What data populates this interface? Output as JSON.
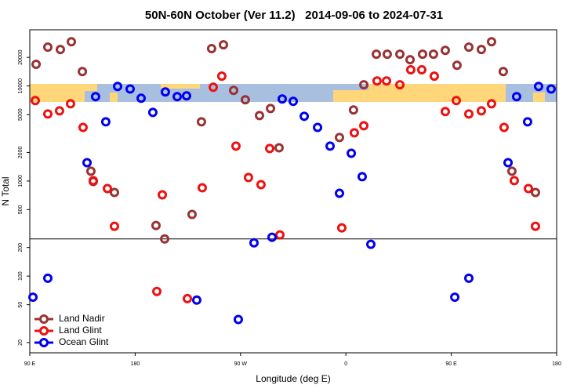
{
  "chart_data": {
    "type": "scatter",
    "title": "50N-60N October (Ver 11.2)   2014-09-06 to 2024-07-31",
    "x_label": "Longitude (deg E)",
    "y_label": "N Total",
    "log_y": true,
    "legend": "lower left",
    "xlim": [
      90,
      540
    ],
    "ylim": [
      15.6,
      39000
    ],
    "xticks": [
      {
        "value": 90,
        "label": "90 E"
      },
      180,
      {
        "value": 270,
        "label": "90 W"
      },
      {
        "value": 360,
        "label": "0"
      },
      {
        "value": 450,
        "label": "90 E"
      },
      {
        "value": 540,
        "label": "180"
      }
    ],
    "yticks": [
      20,
      50,
      100,
      200,
      500,
      1000,
      2000,
      5000,
      10000,
      20000
    ],
    "hline": 246,
    "series": [
      {
        "name": "Land Nadir",
        "color": "#993333",
        "x": [
          95.4,
          105.4,
          116.1,
          125.5,
          134.9,
          142.2,
          144.2,
          162.3,
          197.8,
          205.2,
          228.6,
          236.6,
          245.3,
          255.4,
          264.1,
          274.1,
          286.2,
          295.6,
          302.9,
          354.5,
          366.5,
          375.3,
          386,
          395.3,
          406.1,
          414.8,
          425.5,
          434.8,
          444.9,
          454.9,
          465,
          475.7,
          484.4,
          494.4,
          501.8,
          521.9
        ],
        "values": [
          16900,
          25600,
          24200,
          29200,
          14200,
          1270,
          990,
          758,
          341,
          246,
          445,
          4200,
          24700,
          27100,
          9000,
          7160,
          4890,
          5800,
          2240,
          2870,
          5590,
          10300,
          21600,
          21600,
          21600,
          18900,
          21600,
          21600,
          23700,
          16500,
          25600,
          24200,
          29200,
          14200,
          1270,
          758
        ]
      },
      {
        "name": "Land Glint",
        "color": "#ee1111",
        "x": [
          94.7,
          105.4,
          115.4,
          124.8,
          135.5,
          144.2,
          156.3,
          162.3,
          198.5,
          203.2,
          224.6,
          237.3,
          246.7,
          254,
          266.1,
          276.8,
          287.5,
          294.9,
          303.6,
          356.5,
          367.2,
          375.3,
          386.6,
          394.7,
          406.1,
          415.4,
          424.8,
          435.5,
          444.9,
          454.3,
          465,
          475.7,
          484.4,
          495.1,
          503.8,
          515.9,
          521.9
        ],
        "values": [
          7020,
          5080,
          5480,
          6500,
          3670,
          1010,
          834,
          334,
          69,
          716,
          58,
          849,
          9700,
          12700,
          2330,
          1090,
          916,
          2200,
          271,
          322,
          3220,
          3820,
          11300,
          11300,
          10300,
          14800,
          14800,
          12700,
          5380,
          7020,
          5080,
          5480,
          6500,
          3670,
          1010,
          834,
          334
        ]
      },
      {
        "name": "Ocean Glint",
        "color": "#0000ee",
        "x": [
          92.7,
          105.4,
          138.9,
          146.2,
          154.9,
          165,
          175.7,
          185.1,
          195.1,
          205.8,
          215.9,
          223.9,
          232.6,
          268.1,
          281.5,
          296.9,
          305.6,
          315,
          324.4,
          335.8,
          346.5,
          354.5,
          364.6,
          373.9,
          381.3,
          453,
          465,
          498.5,
          505.8,
          515.2,
          524.6,
          535.3
        ],
        "values": [
          60,
          95,
          1560,
          7720,
          4200,
          9900,
          9300,
          7430,
          5270,
          8650,
          7720,
          7870,
          56,
          35,
          224,
          256,
          7300,
          6890,
          4800,
          3670,
          2330,
          743,
          1960,
          1110,
          216,
          60,
          95,
          1560,
          7720,
          4200,
          9900,
          9300
        ]
      }
    ]
  }
}
